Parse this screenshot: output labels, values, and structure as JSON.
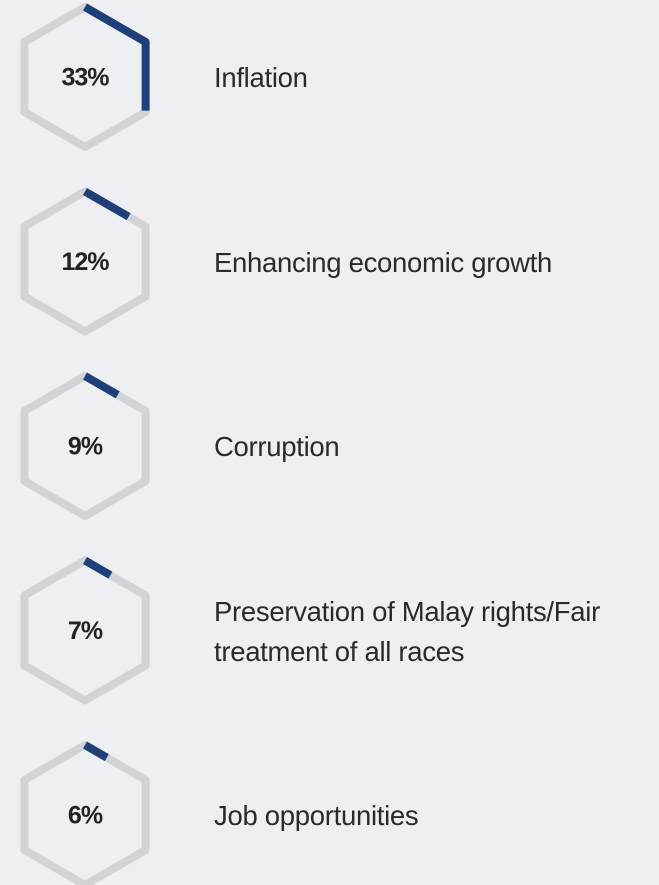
{
  "chart_data": {
    "type": "hexagon",
    "categories": [
      "Inflation",
      "Enhancing economic growth",
      "Corruption",
      "Preservation of Malay rights/Fair treatment of all races",
      "Job opportunities"
    ],
    "values": [
      33,
      12,
      9,
      7,
      6
    ],
    "value_labels": [
      "33%",
      "12%",
      "9%",
      "7%",
      "6%"
    ],
    "ylim": [
      0,
      100
    ],
    "color": "#1f3f7a",
    "track_color": "#d2d3d6"
  }
}
